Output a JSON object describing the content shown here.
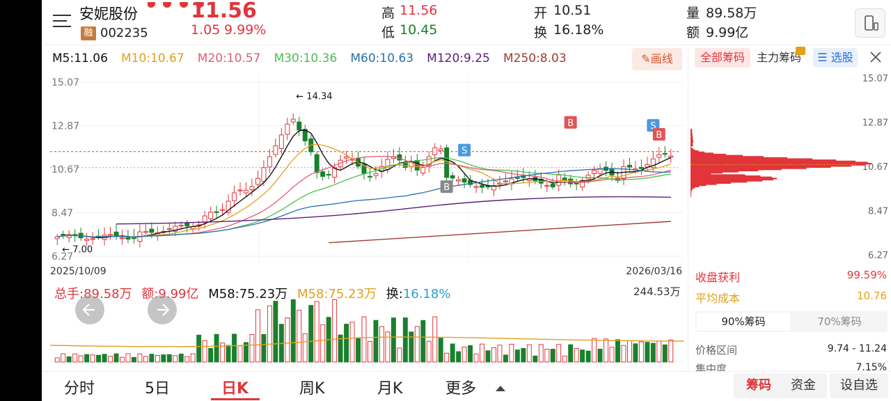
{
  "stock": {
    "name": "安妮股份",
    "rong": "融",
    "code": "002235",
    "price": "11.56",
    "change": "1.05",
    "change_pct": "9.99%"
  },
  "quote": {
    "high_label": "高",
    "high": "11.56",
    "low_label": "低",
    "low": "10.45",
    "open_label": "开",
    "open": "10.51",
    "turnover_label": "换",
    "turnover": "16.18%",
    "volume_label": "量",
    "volume": "89.58万",
    "amount_label": "额",
    "amount": "9.99亿"
  },
  "ma": {
    "m5": "M5:11.06",
    "m10": "M10:10.67",
    "m20": "M20:10.57",
    "m30": "M30:10.36",
    "m60": "M60:10.63",
    "m120": "M120:9.25",
    "m250": "M250:8.03",
    "draw_btn": "画线"
  },
  "colors": {
    "m5": "#111111",
    "m10": "#e2a01e",
    "m20": "#e35b7a",
    "m30": "#4bbf4b",
    "m60": "#2a6fae",
    "m120": "#5a1f7a",
    "m250": "#a33a2f",
    "up": "#e2343b",
    "down": "#19802c"
  },
  "kchart": {
    "yticks": [
      "15.07",
      "12.87",
      "10.67",
      "8.47",
      "6.27"
    ],
    "start_date": "2025/10/09",
    "end_date": "2026/03/16",
    "max_label": "14.34",
    "min_label": "7.00",
    "marker_b": "B",
    "marker_s": "S"
  },
  "volume": {
    "total_hands": "总手:89.58万",
    "amount": "额:9.99亿",
    "m58_black": "M58:75.23万",
    "m58_orange": "M58:75.23万",
    "turn_label": "换:",
    "turn_value": "16.18%",
    "max_label": "244.53万"
  },
  "chips": {
    "tab_all": "全部筹码",
    "tab_main": "主力筹码",
    "pick_stock": "选股",
    "yticks": [
      "15.07",
      "12.87",
      "10.67",
      "8.47",
      "6.27"
    ],
    "profit_label": "收盘获利",
    "profit_value": "99.59%",
    "avg_cost_label": "平均成本",
    "avg_cost_value": "10.76",
    "tab90": "90%筹码",
    "tab70": "70%筹码",
    "range_label": "价格区间",
    "range_value": "9.74 - 11.24",
    "conc_label": "集中度",
    "conc_value": "7.15%"
  },
  "bottom_tabs": [
    "分时",
    "5日",
    "日K",
    "周K",
    "月K",
    "更多"
  ],
  "bottom_right": {
    "chips": "筹码",
    "funds": "资金",
    "custom": "设自选"
  }
}
